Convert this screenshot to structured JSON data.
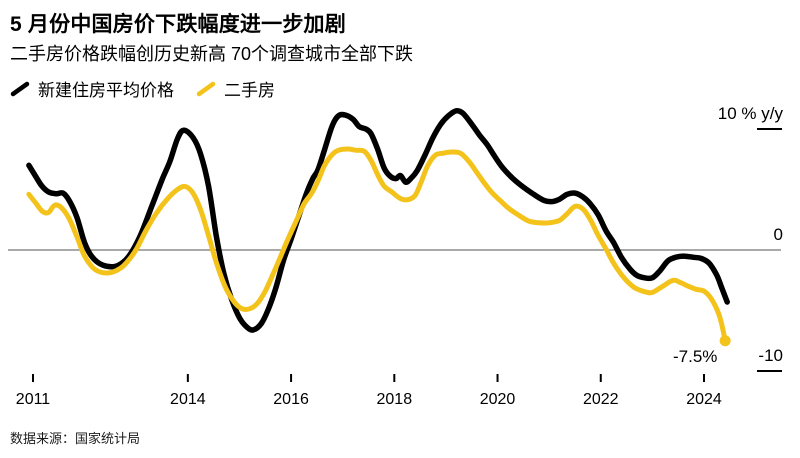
{
  "page": {
    "title": "5 月份中国房价下跌幅度进一步加剧",
    "subtitle": "二手房价格跌幅创历史新高 70个调查城市全部下跌",
    "source": "数据来源：国家统计局"
  },
  "colors": {
    "new_home_line": "#000000",
    "second_hand_line": "#F3C31C",
    "zero_line": "#767676",
    "axis": "#000000"
  },
  "chart_data": {
    "type": "line",
    "unit": "% y/y",
    "ylim": [
      -10.5,
      12
    ],
    "xlim": [
      2010.9,
      2024.6
    ],
    "grid": "zero-line-only",
    "legend_position": "top-left",
    "y_ticks": [
      {
        "label": "10 % y/y",
        "value": 10,
        "tick": true
      },
      {
        "label": "0",
        "value": 0,
        "tick": false
      },
      {
        "label": "-10",
        "value": -10,
        "tick": true
      }
    ],
    "x_ticks": [
      {
        "label": "2011",
        "year": 2011
      },
      {
        "label": "2014",
        "year": 2014
      },
      {
        "label": "2016",
        "year": 2016
      },
      {
        "label": "2018",
        "year": 2018
      },
      {
        "label": "2020",
        "year": 2020
      },
      {
        "label": "2022",
        "year": 2022
      },
      {
        "label": "2024",
        "year": 2024
      }
    ],
    "annotation": {
      "text": "-7.5%",
      "x": 2023.83,
      "y": -8.84
    },
    "series": [
      {
        "name": "新建住房平均价格",
        "color": "#000000",
        "width": 5.5,
        "end_dot": false,
        "points": [
          [
            2010.92,
            7.0
          ],
          [
            2011.05,
            6.1
          ],
          [
            2011.17,
            5.3
          ],
          [
            2011.3,
            4.8
          ],
          [
            2011.45,
            4.65
          ],
          [
            2011.58,
            4.7
          ],
          [
            2011.7,
            4.1
          ],
          [
            2011.85,
            2.7
          ],
          [
            2012.0,
            0.6
          ],
          [
            2012.15,
            -0.6
          ],
          [
            2012.35,
            -1.25
          ],
          [
            2012.6,
            -1.35
          ],
          [
            2012.8,
            -0.8
          ],
          [
            2012.95,
            0.1
          ],
          [
            2013.1,
            1.4
          ],
          [
            2013.3,
            3.6
          ],
          [
            2013.5,
            5.8
          ],
          [
            2013.65,
            7.3
          ],
          [
            2013.8,
            9.2
          ],
          [
            2013.92,
            9.9
          ],
          [
            2014.1,
            9.3
          ],
          [
            2014.25,
            7.9
          ],
          [
            2014.4,
            5.3
          ],
          [
            2014.55,
            1.2
          ],
          [
            2014.7,
            -2.0
          ],
          [
            2014.85,
            -4.1
          ],
          [
            2015.0,
            -5.6
          ],
          [
            2015.15,
            -6.4
          ],
          [
            2015.27,
            -6.6
          ],
          [
            2015.42,
            -6.1
          ],
          [
            2015.55,
            -5.0
          ],
          [
            2015.7,
            -3.2
          ],
          [
            2015.85,
            -0.9
          ],
          [
            2016.0,
            0.9
          ],
          [
            2016.15,
            2.8
          ],
          [
            2016.3,
            4.7
          ],
          [
            2016.42,
            5.9
          ],
          [
            2016.52,
            6.6
          ],
          [
            2016.65,
            8.3
          ],
          [
            2016.8,
            10.3
          ],
          [
            2016.92,
            11.1
          ],
          [
            2017.05,
            11.15
          ],
          [
            2017.2,
            10.8
          ],
          [
            2017.32,
            10.2
          ],
          [
            2017.45,
            10.0
          ],
          [
            2017.55,
            9.6
          ],
          [
            2017.68,
            8.3
          ],
          [
            2017.8,
            6.8
          ],
          [
            2017.92,
            6.1
          ],
          [
            2018.03,
            5.9
          ],
          [
            2018.12,
            6.15
          ],
          [
            2018.22,
            5.6
          ],
          [
            2018.32,
            5.9
          ],
          [
            2018.45,
            6.6
          ],
          [
            2018.6,
            7.9
          ],
          [
            2018.75,
            9.3
          ],
          [
            2018.9,
            10.4
          ],
          [
            2019.05,
            11.1
          ],
          [
            2019.2,
            11.5
          ],
          [
            2019.33,
            11.3
          ],
          [
            2019.5,
            10.4
          ],
          [
            2019.65,
            9.5
          ],
          [
            2019.8,
            8.7
          ],
          [
            2019.95,
            7.7
          ],
          [
            2020.1,
            6.8
          ],
          [
            2020.3,
            5.9
          ],
          [
            2020.5,
            5.2
          ],
          [
            2020.7,
            4.6
          ],
          [
            2020.9,
            4.1
          ],
          [
            2021.05,
            4.0
          ],
          [
            2021.2,
            4.2
          ],
          [
            2021.35,
            4.6
          ],
          [
            2021.5,
            4.7
          ],
          [
            2021.65,
            4.4
          ],
          [
            2021.8,
            3.8
          ],
          [
            2021.95,
            2.9
          ],
          [
            2022.1,
            1.6
          ],
          [
            2022.25,
            0.6
          ],
          [
            2022.4,
            -0.6
          ],
          [
            2022.55,
            -1.5
          ],
          [
            2022.7,
            -2.1
          ],
          [
            2022.85,
            -2.3
          ],
          [
            2023.0,
            -2.3
          ],
          [
            2023.15,
            -1.7
          ],
          [
            2023.3,
            -0.9
          ],
          [
            2023.45,
            -0.6
          ],
          [
            2023.6,
            -0.5
          ],
          [
            2023.8,
            -0.6
          ],
          [
            2023.95,
            -0.7
          ],
          [
            2024.1,
            -1.1
          ],
          [
            2024.25,
            -2.1
          ],
          [
            2024.35,
            -3.2
          ],
          [
            2024.45,
            -4.3
          ]
        ]
      },
      {
        "name": "二手房",
        "color": "#F3C31C",
        "width": 5,
        "end_dot": true,
        "points": [
          [
            2010.92,
            4.6
          ],
          [
            2011.05,
            3.9
          ],
          [
            2011.18,
            3.2
          ],
          [
            2011.3,
            3.1
          ],
          [
            2011.42,
            3.7
          ],
          [
            2011.55,
            3.5
          ],
          [
            2011.7,
            2.6
          ],
          [
            2011.85,
            1.1
          ],
          [
            2012.0,
            -0.5
          ],
          [
            2012.2,
            -1.6
          ],
          [
            2012.45,
            -1.9
          ],
          [
            2012.7,
            -1.5
          ],
          [
            2012.88,
            -0.7
          ],
          [
            2013.02,
            0.2
          ],
          [
            2013.2,
            1.7
          ],
          [
            2013.4,
            3.1
          ],
          [
            2013.6,
            4.2
          ],
          [
            2013.8,
            5.0
          ],
          [
            2013.95,
            5.25
          ],
          [
            2014.1,
            4.7
          ],
          [
            2014.25,
            3.3
          ],
          [
            2014.4,
            1.2
          ],
          [
            2014.55,
            -1.0
          ],
          [
            2014.72,
            -3.0
          ],
          [
            2014.9,
            -4.3
          ],
          [
            2015.05,
            -4.85
          ],
          [
            2015.2,
            -4.85
          ],
          [
            2015.35,
            -4.4
          ],
          [
            2015.5,
            -3.4
          ],
          [
            2015.65,
            -2.0
          ],
          [
            2015.8,
            -0.5
          ],
          [
            2015.95,
            1.0
          ],
          [
            2016.1,
            2.4
          ],
          [
            2016.25,
            3.8
          ],
          [
            2016.4,
            4.7
          ],
          [
            2016.52,
            5.7
          ],
          [
            2016.65,
            7.0
          ],
          [
            2016.8,
            7.9
          ],
          [
            2016.92,
            8.25
          ],
          [
            2017.1,
            8.35
          ],
          [
            2017.25,
            8.25
          ],
          [
            2017.42,
            8.15
          ],
          [
            2017.55,
            7.4
          ],
          [
            2017.68,
            6.2
          ],
          [
            2017.8,
            5.3
          ],
          [
            2017.95,
            4.8
          ],
          [
            2018.1,
            4.3
          ],
          [
            2018.25,
            4.15
          ],
          [
            2018.4,
            4.5
          ],
          [
            2018.52,
            5.6
          ],
          [
            2018.65,
            7.0
          ],
          [
            2018.8,
            7.85
          ],
          [
            2018.95,
            8.0
          ],
          [
            2019.1,
            8.1
          ],
          [
            2019.28,
            8.0
          ],
          [
            2019.45,
            7.3
          ],
          [
            2019.6,
            6.4
          ],
          [
            2019.75,
            5.5
          ],
          [
            2019.9,
            4.7
          ],
          [
            2020.05,
            4.1
          ],
          [
            2020.2,
            3.5
          ],
          [
            2020.4,
            2.9
          ],
          [
            2020.6,
            2.4
          ],
          [
            2020.8,
            2.25
          ],
          [
            2021.0,
            2.25
          ],
          [
            2021.2,
            2.45
          ],
          [
            2021.35,
            3.0
          ],
          [
            2021.5,
            3.6
          ],
          [
            2021.65,
            3.4
          ],
          [
            2021.8,
            2.5
          ],
          [
            2021.95,
            1.2
          ],
          [
            2022.1,
            0.1
          ],
          [
            2022.25,
            -1.1
          ],
          [
            2022.45,
            -2.3
          ],
          [
            2022.65,
            -3.1
          ],
          [
            2022.85,
            -3.45
          ],
          [
            2023.0,
            -3.5
          ],
          [
            2023.2,
            -3.0
          ],
          [
            2023.4,
            -2.5
          ],
          [
            2023.55,
            -2.7
          ],
          [
            2023.7,
            -3.0
          ],
          [
            2023.85,
            -3.25
          ],
          [
            2024.0,
            -3.4
          ],
          [
            2024.12,
            -3.9
          ],
          [
            2024.25,
            -4.9
          ],
          [
            2024.33,
            -5.9
          ],
          [
            2024.41,
            -7.5
          ]
        ]
      }
    ]
  }
}
